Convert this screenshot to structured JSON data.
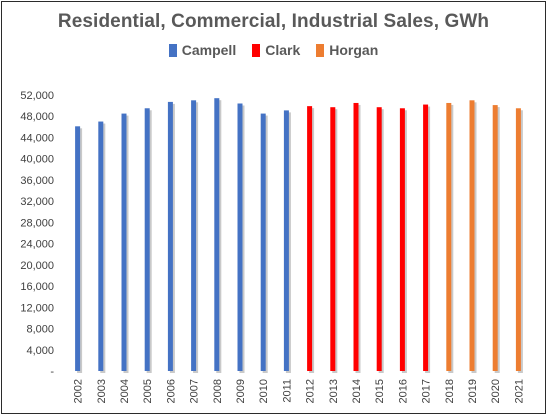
{
  "chart_data": {
    "type": "bar",
    "title": "Residential, Commercial, Industrial Sales, GWh",
    "xlabel": "",
    "ylabel": "",
    "ylim": [
      0,
      52000
    ],
    "grid": false,
    "legend_position": "top",
    "y_ticks": [
      "-",
      "4,000",
      "8,000",
      "12,000",
      "16,000",
      "20,000",
      "24,000",
      "28,000",
      "32,000",
      "36,000",
      "40,000",
      "44,000",
      "48,000",
      "52,000"
    ],
    "y_tick_values": [
      0,
      4000,
      8000,
      12000,
      16000,
      20000,
      24000,
      28000,
      32000,
      36000,
      40000,
      44000,
      48000,
      52000
    ],
    "categories": [
      "2002",
      "2003",
      "2004",
      "2005",
      "2006",
      "2007",
      "2008",
      "2009",
      "2010",
      "2011",
      "2012",
      "2013",
      "2014",
      "2015",
      "2016",
      "2017",
      "2018",
      "2019",
      "2020",
      "2021"
    ],
    "series": [
      {
        "name": "Campell",
        "color": "#4472C4",
        "values": [
          46100,
          47000,
          48500,
          49500,
          50700,
          51000,
          51400,
          50400,
          48500,
          49100,
          null,
          null,
          null,
          null,
          null,
          null,
          null,
          null,
          null,
          null
        ]
      },
      {
        "name": "Clark",
        "color": "#FF0000",
        "values": [
          null,
          null,
          null,
          null,
          null,
          null,
          null,
          null,
          null,
          null,
          49900,
          49700,
          50500,
          49700,
          49500,
          50200,
          null,
          null,
          null,
          null
        ]
      },
      {
        "name": "Horgan",
        "color": "#ED7D31",
        "values": [
          null,
          null,
          null,
          null,
          null,
          null,
          null,
          null,
          null,
          null,
          null,
          null,
          null,
          null,
          null,
          null,
          50500,
          51000,
          50100,
          49500
        ]
      }
    ]
  }
}
